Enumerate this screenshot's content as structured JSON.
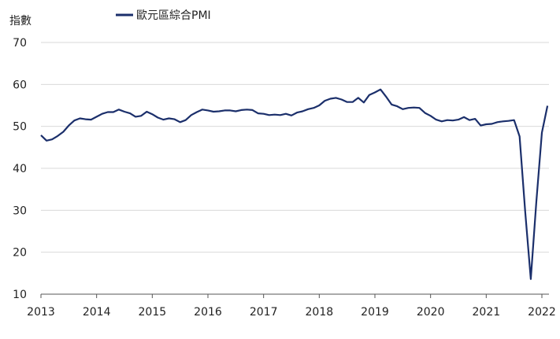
{
  "chart_data": {
    "type": "line",
    "ylabel": "指數",
    "ylim": [
      10,
      70
    ],
    "yticks": [
      10,
      20,
      30,
      40,
      50,
      60,
      70
    ],
    "xticks": [
      2013,
      2014,
      2015,
      2016,
      2017,
      2018,
      2019,
      2020,
      2021,
      2022
    ],
    "xlim": [
      2013.0,
      2022.17
    ],
    "grid": true,
    "legend_position": "top",
    "series": [
      {
        "name": "歐元區綜合PMI",
        "color": "#1b2f6b",
        "points": [
          [
            2013.0,
            47.9
          ],
          [
            2013.1,
            46.6
          ],
          [
            2013.2,
            46.9
          ],
          [
            2013.3,
            47.7
          ],
          [
            2013.4,
            48.7
          ],
          [
            2013.5,
            50.2
          ],
          [
            2013.6,
            51.4
          ],
          [
            2013.7,
            51.9
          ],
          [
            2013.8,
            51.7
          ],
          [
            2013.9,
            51.6
          ],
          [
            2014.0,
            52.3
          ],
          [
            2014.1,
            53.0
          ],
          [
            2014.2,
            53.4
          ],
          [
            2014.3,
            53.4
          ],
          [
            2014.4,
            54.0
          ],
          [
            2014.5,
            53.5
          ],
          [
            2014.6,
            53.1
          ],
          [
            2014.7,
            52.3
          ],
          [
            2014.8,
            52.5
          ],
          [
            2014.9,
            53.5
          ],
          [
            2015.0,
            52.9
          ],
          [
            2015.1,
            52.1
          ],
          [
            2015.2,
            51.6
          ],
          [
            2015.3,
            51.9
          ],
          [
            2015.4,
            51.7
          ],
          [
            2015.5,
            51.0
          ],
          [
            2015.6,
            51.5
          ],
          [
            2015.7,
            52.7
          ],
          [
            2015.8,
            53.4
          ],
          [
            2015.9,
            54.0
          ],
          [
            2016.0,
            53.8
          ],
          [
            2016.1,
            53.5
          ],
          [
            2016.2,
            53.6
          ],
          [
            2016.3,
            53.8
          ],
          [
            2016.4,
            53.8
          ],
          [
            2016.5,
            53.6
          ],
          [
            2016.6,
            53.9
          ],
          [
            2016.7,
            54.0
          ],
          [
            2016.8,
            53.9
          ],
          [
            2016.9,
            53.1
          ],
          [
            2017.0,
            53.0
          ],
          [
            2017.1,
            52.7
          ],
          [
            2017.2,
            52.8
          ],
          [
            2017.3,
            52.7
          ],
          [
            2017.4,
            53.0
          ],
          [
            2017.5,
            52.6
          ],
          [
            2017.6,
            53.3
          ],
          [
            2017.7,
            53.6
          ],
          [
            2017.8,
            54.1
          ],
          [
            2017.9,
            54.4
          ],
          [
            2018.0,
            55.0
          ],
          [
            2018.1,
            56.1
          ],
          [
            2018.2,
            56.6
          ],
          [
            2018.3,
            56.8
          ],
          [
            2018.4,
            56.4
          ],
          [
            2018.5,
            55.8
          ],
          [
            2018.6,
            55.8
          ],
          [
            2018.7,
            56.8
          ],
          [
            2018.8,
            55.7
          ],
          [
            2018.9,
            57.5
          ],
          [
            2019.0,
            58.1
          ],
          [
            2019.1,
            58.8
          ],
          [
            2019.2,
            57.1
          ],
          [
            2019.3,
            55.2
          ],
          [
            2019.4,
            54.8
          ],
          [
            2019.5,
            54.1
          ],
          [
            2019.6,
            54.4
          ],
          [
            2019.7,
            54.5
          ],
          [
            2019.8,
            54.4
          ],
          [
            2019.9,
            53.2
          ],
          [
            2020.0,
            52.5
          ],
          [
            2020.1,
            51.6
          ],
          [
            2020.2,
            51.2
          ],
          [
            2020.3,
            51.5
          ],
          [
            2020.4,
            51.4
          ],
          [
            2020.5,
            51.6
          ],
          [
            2020.6,
            52.2
          ],
          [
            2020.7,
            51.5
          ],
          [
            2020.8,
            51.8
          ],
          [
            2020.9,
            50.2
          ],
          [
            2021.0,
            50.5
          ],
          [
            2021.1,
            50.6
          ],
          [
            2021.2,
            51.0
          ],
          [
            2021.3,
            51.2
          ],
          [
            2021.4,
            51.3
          ],
          [
            2021.5,
            51.5
          ],
          [
            2021.6,
            47.6
          ],
          [
            2021.7,
            29.7
          ],
          [
            2021.8,
            13.6
          ],
          [
            2021.9,
            31.9
          ],
          [
            2022.0,
            48.5
          ],
          [
            2022.1,
            54.9
          ]
        ]
      }
    ]
  }
}
